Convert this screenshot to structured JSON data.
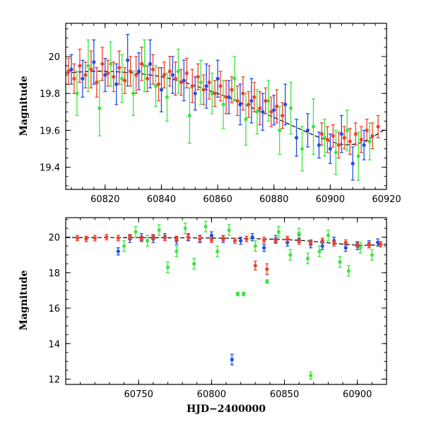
{
  "colors": {
    "blue": "#1f4fe6",
    "green": "#3ee63e",
    "red": "#f0402a",
    "model": "#000000"
  },
  "chart_data": [
    {
      "type": "scatter",
      "panel": "top",
      "title": "",
      "xlabel": "",
      "ylabel": "Magnitude",
      "xlim": [
        60806,
        60920
      ],
      "ylim": [
        20.18,
        19.28
      ],
      "y_inverted": true,
      "x_ticks": [
        60820,
        60840,
        60860,
        60880,
        60900,
        60920
      ],
      "y_ticks": [
        19.4,
        19.6,
        19.8,
        20
      ],
      "y_tick_labels": [
        "19.4",
        "19.6",
        "19.8",
        "20"
      ],
      "error_bars": true,
      "series": [
        {
          "color": "blue",
          "x": [
            60808,
            60812,
            60816,
            60820,
            60824,
            60828,
            60832,
            60836,
            60840,
            60844,
            60848,
            60852,
            60856,
            60860,
            60864,
            60868,
            60872,
            60876,
            60880,
            60884,
            60888,
            60892,
            60896,
            60900,
            60904,
            60908,
            60912
          ],
          "y": [
            19.93,
            19.88,
            19.97,
            19.9,
            19.85,
            19.98,
            19.92,
            19.96,
            19.82,
            19.9,
            19.87,
            19.8,
            19.84,
            19.88,
            19.78,
            19.74,
            19.76,
            19.7,
            19.71,
            19.74,
            19.56,
            19.6,
            19.52,
            19.5,
            19.58,
            19.42,
            19.52
          ],
          "err": [
            0.08,
            0.1,
            0.12,
            0.09,
            0.11,
            0.14,
            0.1,
            0.13,
            0.12,
            0.1,
            0.11,
            0.09,
            0.12,
            0.1,
            0.09,
            0.11,
            0.12,
            0.1,
            0.08,
            0.11,
            0.1,
            0.09,
            0.07,
            0.08,
            0.1,
            0.09,
            0.08
          ]
        },
        {
          "color": "green",
          "x": [
            60810,
            60814,
            60818,
            60822,
            60826,
            60830,
            60834,
            60838,
            60842,
            60846,
            60850,
            60854,
            60858,
            60862,
            60866,
            60870,
            60874,
            60878,
            60882,
            60886,
            60890,
            60894,
            60898,
            60902,
            60906,
            60910,
            60914
          ],
          "y": [
            19.8,
            19.95,
            19.72,
            19.96,
            19.88,
            19.8,
            19.95,
            19.84,
            19.78,
            19.92,
            19.68,
            19.86,
            19.8,
            19.74,
            19.88,
            19.66,
            19.7,
            19.76,
            19.6,
            19.72,
            19.5,
            19.62,
            19.56,
            19.48,
            19.6,
            19.46,
            19.54
          ],
          "err": [
            0.12,
            0.14,
            0.15,
            0.12,
            0.13,
            0.12,
            0.14,
            0.11,
            0.13,
            0.12,
            0.15,
            0.12,
            0.11,
            0.13,
            0.12,
            0.14,
            0.12,
            0.11,
            0.13,
            0.14,
            0.12,
            0.15,
            0.1,
            0.12,
            0.11,
            0.13,
            0.1
          ]
        },
        {
          "color": "red",
          "x": [
            60807,
            60809,
            60811,
            60813,
            60815,
            60817,
            60819,
            60821,
            60823,
            60825,
            60827,
            60829,
            60831,
            60833,
            60835,
            60837,
            60839,
            60841,
            60843,
            60845,
            60847,
            60849,
            60851,
            60853,
            60855,
            60857,
            60859,
            60861,
            60863,
            60865,
            60867,
            60869,
            60871,
            60873,
            60875,
            60877,
            60879,
            60881,
            60883,
            60897,
            60899,
            60901,
            60903,
            60905,
            60907,
            60909,
            60911,
            60913,
            60915,
            60917
          ],
          "y": [
            19.92,
            19.88,
            19.95,
            19.9,
            19.93,
            19.86,
            19.96,
            19.91,
            19.89,
            19.94,
            19.87,
            19.92,
            19.9,
            19.96,
            19.88,
            19.93,
            19.85,
            19.9,
            19.92,
            19.88,
            19.86,
            19.91,
            19.84,
            19.89,
            19.82,
            19.86,
            19.8,
            19.84,
            19.78,
            19.82,
            19.76,
            19.8,
            19.74,
            19.78,
            19.72,
            19.76,
            19.7,
            19.73,
            19.68,
            19.58,
            19.55,
            19.57,
            19.52,
            19.56,
            19.54,
            19.58,
            19.55,
            19.6,
            19.57,
            19.62
          ],
          "err": [
            0.07,
            0.08,
            0.09,
            0.07,
            0.1,
            0.08,
            0.09,
            0.07,
            0.08,
            0.09,
            0.07,
            0.08,
            0.1,
            0.09,
            0.07,
            0.08,
            0.09,
            0.07,
            0.08,
            0.09,
            0.07,
            0.08,
            0.09,
            0.07,
            0.08,
            0.09,
            0.07,
            0.08,
            0.09,
            0.07,
            0.08,
            0.09,
            0.07,
            0.08,
            0.09,
            0.07,
            0.08,
            0.09,
            0.07,
            0.06,
            0.07,
            0.06,
            0.07,
            0.06,
            0.07,
            0.06,
            0.07,
            0.06,
            0.07,
            0.06
          ]
        }
      ],
      "model_curve": {
        "x": [
          60806,
          60820,
          60840,
          60860,
          60880,
          60900,
          60910,
          60920
        ],
        "y": [
          19.91,
          19.92,
          19.89,
          19.8,
          19.67,
          19.54,
          19.53,
          19.61
        ]
      }
    },
    {
      "type": "scatter",
      "panel": "bottom",
      "title": "",
      "xlabel": "HJD−2400000",
      "ylabel": "Magnitude",
      "xlim": [
        60700,
        60920
      ],
      "ylim": [
        21.1,
        11.7
      ],
      "y_inverted": true,
      "x_ticks": [
        60750,
        60800,
        60850,
        60900
      ],
      "y_ticks": [
        12,
        14,
        16,
        18,
        20
      ],
      "y_tick_labels": [
        "12",
        "14",
        "16",
        "18",
        "20"
      ],
      "error_bars": true,
      "series": [
        {
          "color": "blue",
          "x": [
            60736,
            60744,
            60752,
            60760,
            60768,
            60776,
            60784,
            60792,
            60800,
            60808,
            60814,
            60820,
            60828,
            60836,
            60844,
            60852,
            60860,
            60868,
            60876,
            60884,
            60892,
            60900,
            60908,
            60914
          ],
          "y": [
            19.2,
            19.9,
            20.0,
            19.9,
            20.0,
            19.8,
            20.0,
            19.9,
            20.1,
            19.9,
            13.1,
            19.8,
            20.0,
            19.4,
            19.9,
            19.7,
            19.9,
            19.6,
            19.5,
            19.8,
            19.4,
            19.5,
            19.6,
            19.7
          ],
          "err": [
            0.2,
            0.2,
            0.2,
            0.2,
            0.2,
            0.2,
            0.2,
            0.2,
            0.2,
            0.2,
            0.3,
            0.2,
            0.2,
            0.2,
            0.2,
            0.2,
            0.2,
            0.2,
            0.2,
            0.2,
            0.2,
            0.2,
            0.2,
            0.2
          ]
        },
        {
          "color": "green",
          "x": [
            60740,
            60748,
            60756,
            60764,
            60770,
            60776,
            60782,
            60788,
            60796,
            60804,
            60812,
            60818,
            60822,
            60830,
            60838,
            60846,
            60854,
            60860,
            60866,
            60868,
            60874,
            60880,
            60888,
            60894,
            60902,
            60910
          ],
          "y": [
            19.5,
            20.3,
            19.8,
            20.4,
            18.3,
            19.2,
            20.5,
            18.5,
            20.6,
            19.2,
            20.4,
            16.8,
            16.8,
            19.5,
            17.5,
            20.3,
            19.0,
            20.2,
            18.8,
            12.2,
            19.2,
            20.1,
            18.6,
            18.1,
            19.4,
            19.0
          ],
          "err": [
            0.3,
            0.3,
            0.3,
            0.3,
            0.3,
            0.3,
            0.3,
            0.3,
            0.3,
            0.3,
            0.3,
            0.1,
            0.1,
            0.3,
            0.1,
            0.3,
            0.3,
            0.3,
            0.3,
            0.2,
            0.3,
            0.3,
            0.3,
            0.3,
            0.3,
            0.3
          ]
        },
        {
          "color": "red",
          "x": [
            60708,
            60714,
            60720,
            60728,
            60736,
            60744,
            60752,
            60760,
            60768,
            60776,
            60784,
            60792,
            60800,
            60808,
            60816,
            60824,
            60830,
            60836,
            60838,
            60844,
            60852,
            60860,
            60868,
            60876,
            60884,
            60892,
            60900,
            60908,
            60916
          ],
          "y": [
            19.95,
            19.9,
            19.95,
            20.0,
            19.95,
            20.0,
            19.9,
            20.0,
            19.95,
            19.9,
            20.0,
            19.9,
            19.85,
            19.95,
            19.8,
            19.9,
            18.4,
            19.85,
            18.2,
            19.8,
            19.9,
            19.75,
            19.7,
            19.8,
            19.65,
            19.7,
            19.6,
            19.55,
            19.6
          ],
          "err": [
            0.15,
            0.15,
            0.15,
            0.15,
            0.15,
            0.15,
            0.15,
            0.15,
            0.15,
            0.15,
            0.15,
            0.15,
            0.15,
            0.15,
            0.15,
            0.15,
            0.25,
            0.15,
            0.3,
            0.15,
            0.15,
            0.15,
            0.15,
            0.15,
            0.15,
            0.15,
            0.15,
            0.15,
            0.15
          ]
        }
      ],
      "model_curve": {
        "x": [
          60700,
          60760,
          60820,
          60860,
          60900,
          60920
        ],
        "y": [
          19.98,
          19.97,
          19.93,
          19.82,
          19.55,
          19.6
        ]
      }
    }
  ]
}
